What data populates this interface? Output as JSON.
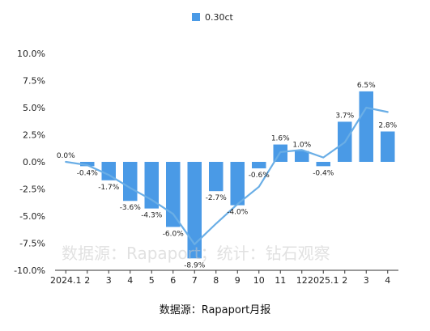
{
  "chart_data": {
    "type": "bar",
    "title": "",
    "xlabel": "",
    "ylabel": "",
    "ylim": [
      -10,
      10
    ],
    "ytick_step": 2.5,
    "grid": false,
    "legend_position": "top-center",
    "categories": [
      "2024.1",
      "2",
      "3",
      "4",
      "5",
      "6",
      "7",
      "8",
      "9",
      "10",
      "11",
      "12",
      "2025.1",
      "2",
      "3",
      "4"
    ],
    "series": [
      {
        "name": "0.30ct",
        "type": "bar",
        "color": "#4a9ae6",
        "values": [
          0.0,
          -0.4,
          -1.7,
          -3.6,
          -4.3,
          -6.0,
          -8.9,
          -2.7,
          -4.0,
          -0.6,
          1.6,
          1.0,
          -0.4,
          3.7,
          6.5,
          2.8
        ],
        "labels": [
          "0.0%",
          "-0.4%",
          "-1.7%",
          "-3.6%",
          "-4.3%",
          "-6.0%",
          "-8.9%",
          "-2.7%",
          "-4.0%",
          "-0.6%",
          "1.6%",
          "1.0%",
          "-0.4%",
          "3.7%",
          "6.5%",
          "2.8%"
        ]
      },
      {
        "type": "trendline",
        "color": "#6aaee6",
        "values": [
          0.0,
          -0.3,
          -1.2,
          -2.4,
          -3.5,
          -4.8,
          -7.6,
          -5.7,
          -3.9,
          -2.3,
          0.9,
          1.1,
          0.4,
          1.8,
          5.0,
          4.6
        ]
      }
    ],
    "ytick_labels": [
      "10.0%",
      "7.5%",
      "5.0%",
      "2.5%",
      "0.0%",
      "-2.5%",
      "-5.0%",
      "-7.5%",
      "-10.0%"
    ]
  },
  "source_text": "数据源：Rapaport月报",
  "watermark": "数据源：Rapaport；统计：钻石观察"
}
